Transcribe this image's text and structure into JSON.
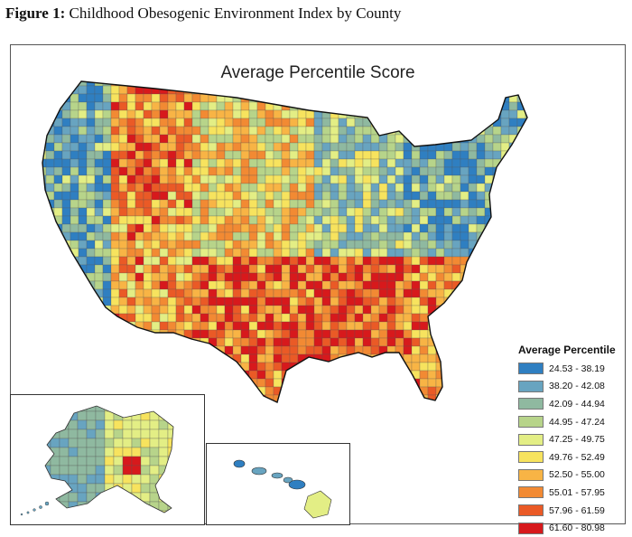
{
  "caption": {
    "label": "Figure 1:",
    "text": "Childhood Obesogenic Environment Index by County"
  },
  "map": {
    "title": "Average Percentile Score",
    "regions": [
      "Contiguous United States",
      "Alaska",
      "Hawaii"
    ]
  },
  "legend": {
    "title": "Average Percentile",
    "items": [
      {
        "label": "24.53 - 38.19",
        "color": "#2f7fc1"
      },
      {
        "label": "38.20 - 42.08",
        "color": "#68a4c0"
      },
      {
        "label": "42.09 - 44.94",
        "color": "#8fb9a0"
      },
      {
        "label": "44.95 - 47.24",
        "color": "#b7d48a"
      },
      {
        "label": "47.25 - 49.75",
        "color": "#e3ee85"
      },
      {
        "label": "49.76 - 52.49",
        "color": "#f7e35e"
      },
      {
        "label": "52.50 - 55.00",
        "color": "#f8b445"
      },
      {
        "label": "55.01 - 57.95",
        "color": "#f28a33"
      },
      {
        "label": "57.96 - 61.59",
        "color": "#ea5a26"
      },
      {
        "label": "61.60 - 80.98",
        "color": "#d7191c"
      }
    ]
  }
}
